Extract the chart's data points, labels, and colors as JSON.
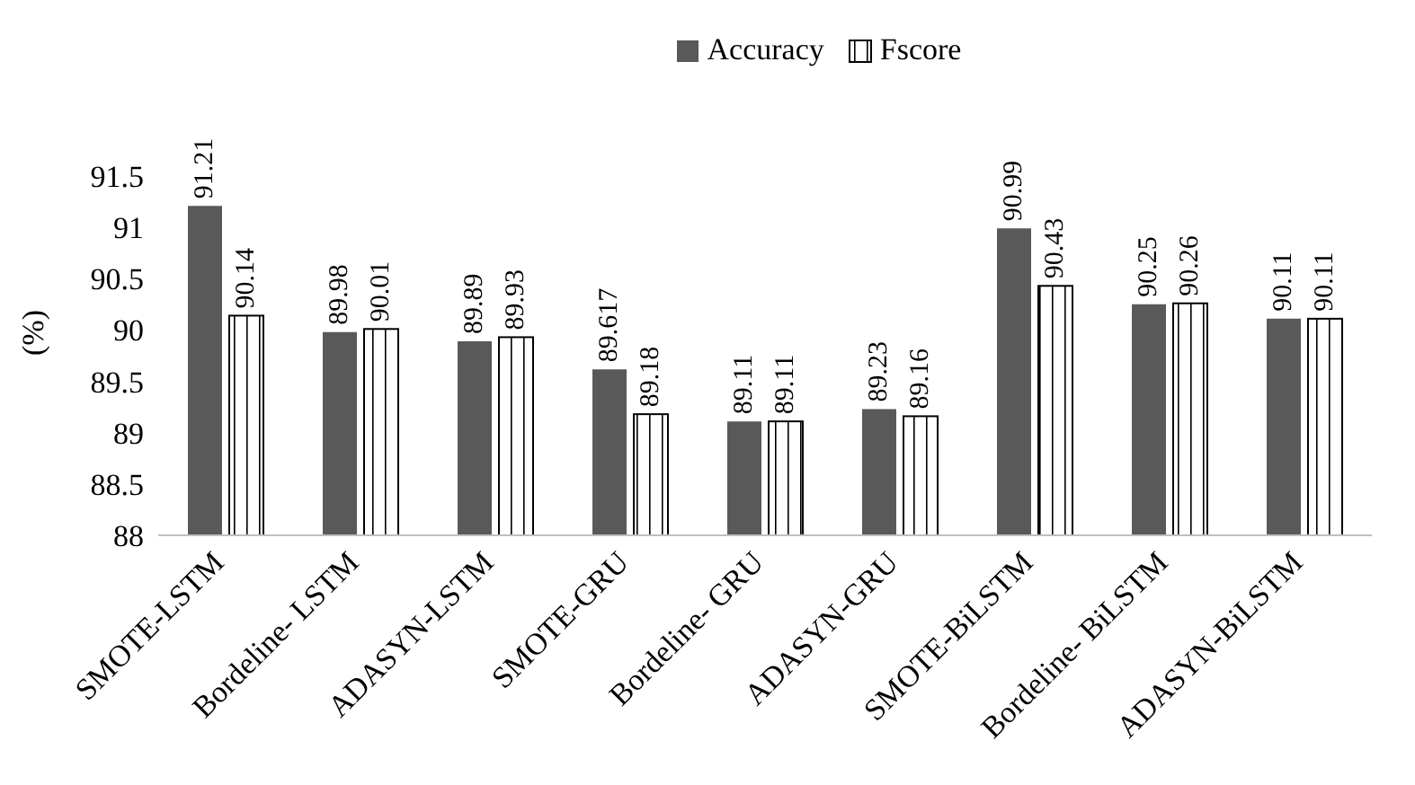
{
  "chart_data": {
    "type": "bar",
    "ylabel": "(%)",
    "categories": [
      "SMOTE-LSTM",
      "Bordeline- LSTM",
      "ADASYN-LSTM",
      "SMOTE-GRU",
      "Bordeline- GRU",
      "ADASYN-GRU",
      "SMOTE-BiLSTM",
      "Bordeline- BiLSTM",
      "ADASYN-BiLSTM"
    ],
    "series": [
      {
        "name": "Accuracy",
        "color": "#595959",
        "values": [
          91.21,
          89.98,
          89.89,
          89.617,
          89.11,
          89.23,
          90.99,
          90.25,
          90.11
        ]
      },
      {
        "name": "Fscore",
        "color": "#ffffff",
        "values": [
          90.14,
          90.01,
          89.93,
          89.18,
          89.11,
          89.16,
          90.43,
          90.26,
          90.11
        ]
      }
    ],
    "ylim": [
      88,
      91.5
    ],
    "yticks": [
      88,
      88.5,
      89,
      89.5,
      90,
      90.5,
      91,
      91.5
    ],
    "data_labels": true,
    "grid": false,
    "legend": "top"
  }
}
